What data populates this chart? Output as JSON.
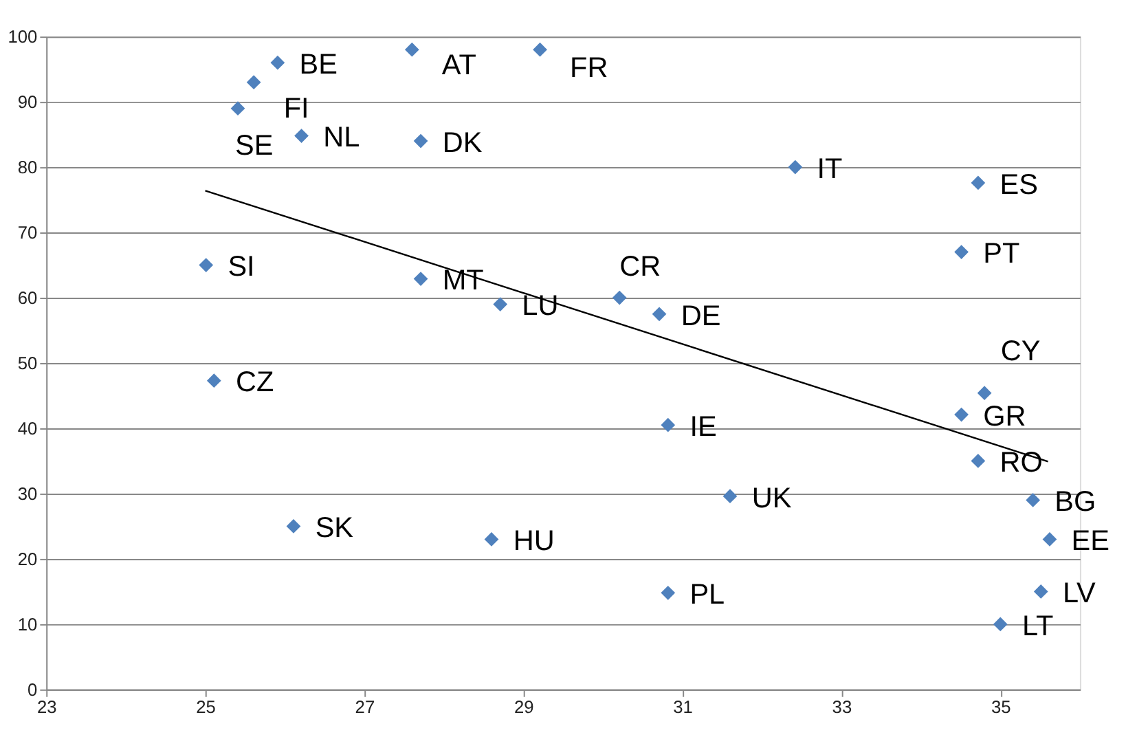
{
  "chart_data": {
    "type": "scatter",
    "xlim": [
      23,
      36
    ],
    "xticks": [
      23,
      25,
      27,
      29,
      31,
      33,
      35
    ],
    "ylim": [
      0,
      100
    ],
    "yticks": [
      0,
      10,
      20,
      30,
      40,
      50,
      60,
      70,
      80,
      90,
      100
    ],
    "grid": "y",
    "marker": "diamond",
    "series": [
      {
        "color": "#4f81bd",
        "x": [
          25.91,
          27.6,
          29.21,
          25.61,
          25.41,
          26.21,
          27.71,
          32.42,
          34.72,
          34.51,
          25.01,
          27.71,
          28.71,
          30.21,
          30.71,
          25.11,
          34.8,
          34.51,
          30.82,
          34.72,
          31.6,
          35.41,
          35.62,
          30.82,
          35.51,
          35.0,
          26.11,
          28.6
        ],
        "values": [
          96,
          98,
          98,
          93,
          89,
          84.8,
          84,
          80,
          77.6,
          67,
          65,
          62.9,
          59,
          60,
          57.5,
          47.3,
          45.4,
          42.1,
          40.5,
          35,
          29.6,
          29,
          23,
          14.8,
          15,
          10,
          25,
          23
        ]
      },
      {
        "type": "line",
        "color": "#000000",
        "marker": "none",
        "x": [
          25.0,
          35.6
        ],
        "values": [
          76.4,
          34.9
        ]
      }
    ],
    "annotations": [
      {
        "text": "BE",
        "x": 25.91,
        "y": 96
      },
      {
        "text": "AT",
        "x": 27.6,
        "y": 98
      },
      {
        "text": "FR",
        "x": 29.21,
        "y": 98
      },
      {
        "text": "FI",
        "x": 25.61,
        "y": 93
      },
      {
        "text": "SE",
        "x": 25.41,
        "y": 89
      },
      {
        "text": "NL",
        "x": 26.21,
        "y": 84.8
      },
      {
        "text": "DK",
        "x": 27.71,
        "y": 84
      },
      {
        "text": "IT",
        "x": 32.42,
        "y": 80
      },
      {
        "text": "ES",
        "x": 34.72,
        "y": 77.6
      },
      {
        "text": "PT",
        "x": 34.51,
        "y": 67
      },
      {
        "text": "SI",
        "x": 25.01,
        "y": 65
      },
      {
        "text": "MT",
        "x": 27.71,
        "y": 62.9
      },
      {
        "text": "LU",
        "x": 28.71,
        "y": 59
      },
      {
        "text": "CR",
        "x": 30.21,
        "y": 60
      },
      {
        "text": "DE",
        "x": 30.71,
        "y": 57.5
      },
      {
        "text": "CZ",
        "x": 25.11,
        "y": 47.3
      },
      {
        "text": "CY",
        "x": 34.8,
        "y": 45.4
      },
      {
        "text": "GR",
        "x": 34.51,
        "y": 42.1
      },
      {
        "text": "IE",
        "x": 30.82,
        "y": 40.5
      },
      {
        "text": "RO",
        "x": 34.72,
        "y": 35
      },
      {
        "text": "UK",
        "x": 31.6,
        "y": 29.6
      },
      {
        "text": "BG",
        "x": 35.41,
        "y": 29
      },
      {
        "text": "EE",
        "x": 35.62,
        "y": 23
      },
      {
        "text": "PL",
        "x": 30.82,
        "y": 14.8
      },
      {
        "text": "LV",
        "x": 35.51,
        "y": 15
      },
      {
        "text": "LT",
        "x": 35.0,
        "y": 10
      },
      {
        "text": "SK",
        "x": 26.11,
        "y": 25
      },
      {
        "text": "HU",
        "x": 28.6,
        "y": 23
      }
    ]
  }
}
